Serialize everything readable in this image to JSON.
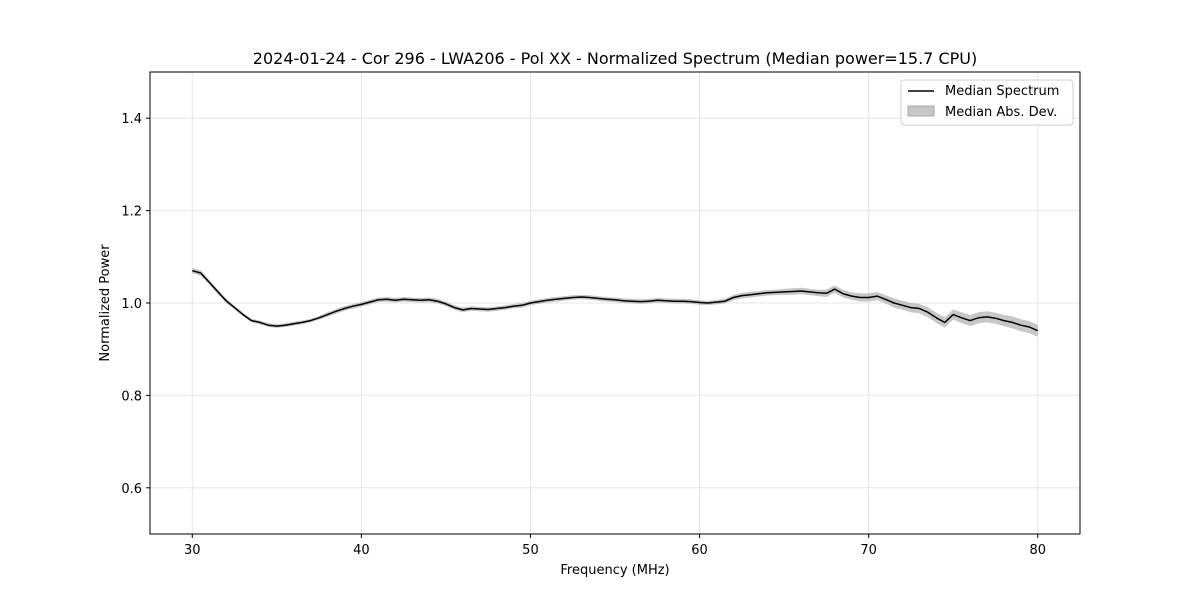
{
  "chart_data": {
    "type": "line",
    "title": "2024-01-24 - Cor 296 - LWA206 - Pol XX - Normalized Spectrum (Median power=15.7 CPU)",
    "xlabel": "Frequency (MHz)",
    "ylabel": "Normalized Power",
    "xlim": [
      27.5,
      82.5
    ],
    "ylim": [
      0.5,
      1.5
    ],
    "xticks": [
      30,
      40,
      50,
      60,
      70,
      80
    ],
    "xtick_labels": [
      "30",
      "40",
      "50",
      "60",
      "70",
      "80"
    ],
    "yticks": [
      0.6,
      0.8,
      1.0,
      1.2,
      1.4
    ],
    "ytick_labels": [
      "0.6",
      "0.8",
      "1.0",
      "1.2",
      "1.4"
    ],
    "grid": true,
    "legend_position": "top-right",
    "series": [
      {
        "name": "Median Spectrum",
        "kind": "line",
        "color": "#000000",
        "x": [
          30,
          30.5,
          31,
          31.5,
          32,
          32.5,
          33,
          33.5,
          34,
          34.5,
          35,
          35.5,
          36,
          36.5,
          37,
          37.5,
          38,
          38.5,
          39,
          39.5,
          40,
          40.5,
          41,
          41.5,
          42,
          42.5,
          43,
          43.5,
          44,
          44.5,
          45,
          45.5,
          46,
          46.5,
          47,
          47.5,
          48,
          48.5,
          49,
          49.5,
          50,
          50.5,
          51,
          51.5,
          52,
          52.5,
          53,
          53.5,
          54,
          54.5,
          55,
          55.5,
          56,
          56.5,
          57,
          57.5,
          58,
          58.5,
          59,
          59.5,
          60,
          60.5,
          61,
          61.5,
          62,
          62.5,
          63,
          63.5,
          64,
          64.5,
          65,
          65.5,
          66,
          66.5,
          67,
          67.5,
          68,
          68.5,
          69,
          69.5,
          70,
          70.5,
          71,
          71.5,
          72,
          72.5,
          73,
          73.5,
          74,
          74.5,
          75,
          75.5,
          76,
          76.5,
          77,
          77.5,
          78,
          78.5,
          79,
          79.5,
          80
        ],
        "y": [
          1.07,
          1.065,
          1.045,
          1.025,
          1.005,
          0.99,
          0.975,
          0.962,
          0.958,
          0.952,
          0.95,
          0.952,
          0.955,
          0.958,
          0.962,
          0.968,
          0.975,
          0.982,
          0.988,
          0.993,
          0.997,
          1.002,
          1.007,
          1.008,
          1.006,
          1.008,
          1.007,
          1.006,
          1.007,
          1.004,
          0.998,
          0.99,
          0.985,
          0.988,
          0.987,
          0.986,
          0.988,
          0.99,
          0.993,
          0.995,
          1.0,
          1.003,
          1.006,
          1.008,
          1.01,
          1.012,
          1.013,
          1.012,
          1.01,
          1.008,
          1.007,
          1.005,
          1.004,
          1.003,
          1.004,
          1.006,
          1.005,
          1.004,
          1.004,
          1.003,
          1.001,
          1.0,
          1.002,
          1.004,
          1.012,
          1.016,
          1.018,
          1.02,
          1.022,
          1.023,
          1.024,
          1.025,
          1.026,
          1.024,
          1.022,
          1.021,
          1.03,
          1.02,
          1.015,
          1.012,
          1.012,
          1.015,
          1.008,
          1.0,
          0.995,
          0.99,
          0.988,
          0.98,
          0.968,
          0.958,
          0.975,
          0.968,
          0.962,
          0.968,
          0.97,
          0.967,
          0.962,
          0.958,
          0.952,
          0.948,
          0.94
        ],
        "spread": [
          0.006,
          0.006,
          0.005,
          0.005,
          0.005,
          0.004,
          0.004,
          0.004,
          0.004,
          0.004,
          0.004,
          0.004,
          0.004,
          0.004,
          0.004,
          0.004,
          0.005,
          0.005,
          0.005,
          0.005,
          0.005,
          0.005,
          0.005,
          0.005,
          0.005,
          0.005,
          0.005,
          0.005,
          0.005,
          0.005,
          0.005,
          0.005,
          0.005,
          0.005,
          0.005,
          0.005,
          0.005,
          0.005,
          0.005,
          0.005,
          0.005,
          0.005,
          0.005,
          0.005,
          0.005,
          0.005,
          0.005,
          0.005,
          0.005,
          0.005,
          0.005,
          0.005,
          0.005,
          0.005,
          0.005,
          0.005,
          0.005,
          0.005,
          0.005,
          0.005,
          0.005,
          0.005,
          0.005,
          0.005,
          0.006,
          0.006,
          0.006,
          0.006,
          0.006,
          0.006,
          0.007,
          0.007,
          0.007,
          0.007,
          0.007,
          0.008,
          0.008,
          0.008,
          0.008,
          0.009,
          0.009,
          0.009,
          0.009,
          0.01,
          0.01,
          0.01,
          0.01,
          0.011,
          0.011,
          0.011,
          0.011,
          0.012,
          0.012,
          0.012,
          0.012,
          0.012,
          0.012,
          0.013,
          0.013,
          0.013,
          0.013
        ]
      },
      {
        "name": "Median Abs. Dev.",
        "kind": "band",
        "color": "#a9a9a9"
      }
    ]
  }
}
